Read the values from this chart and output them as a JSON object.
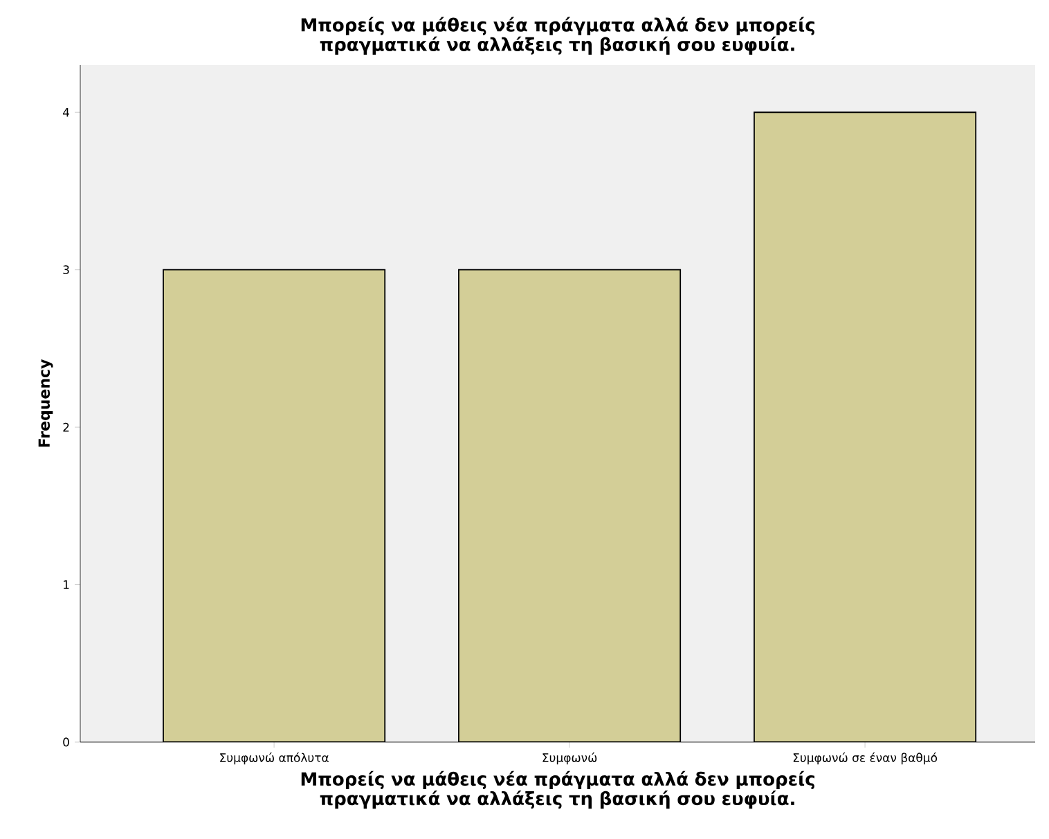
{
  "chart_data": {
    "type": "bar",
    "title": "Μπορείς να μάθεις νέα πράγματα αλλά δεν μπορείς πραγματικά να αλλάξεις τη βασική σου ευφυία.",
    "xlabel": "Μπορείς να μάθεις νέα πράγματα αλλά δεν μπορείς πραγματικά να αλλάξεις τη βασική σου ευφυία.",
    "ylabel": "Frequency",
    "categories": [
      "Συμφωνώ απόλυτα",
      "Συμφωνώ",
      "Συμφωνώ σε έναν βαθμό"
    ],
    "values": [
      3,
      3,
      4
    ],
    "color": "#d3ce97",
    "ylim": [
      0,
      4.3
    ],
    "yticks": [
      0,
      1,
      2,
      3,
      4
    ]
  }
}
